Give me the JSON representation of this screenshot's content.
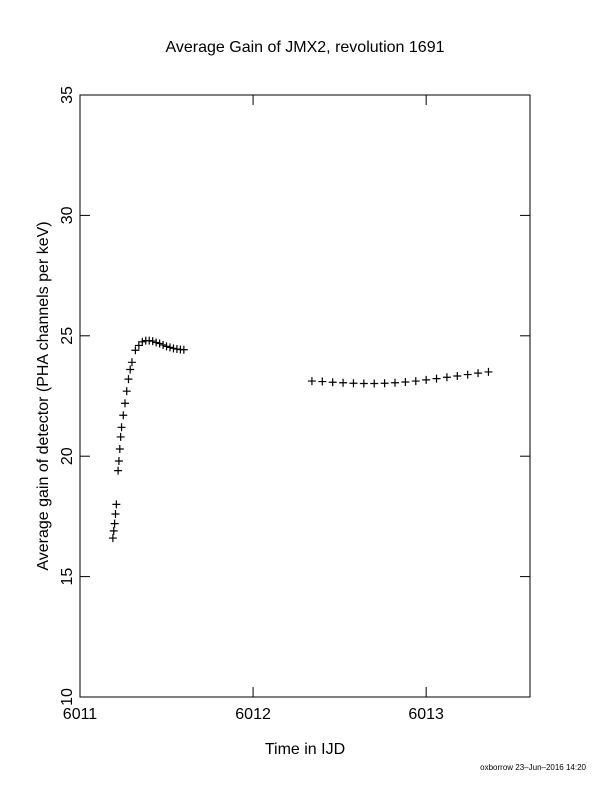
{
  "chart_data": {
    "type": "scatter",
    "title": "Average Gain of JMX2, revolution 1691",
    "x_label": "Time in IJD",
    "y_label": "Average gain of detector (PHA channels per keV)",
    "footer": "oxborrow 23–Jun–2016 14:20",
    "xlim": [
      6011,
      6013.6
    ],
    "xticks": [
      6011,
      6012,
      6013
    ],
    "ylim": [
      10,
      35
    ],
    "yticks": [
      10,
      15,
      20,
      25,
      30,
      35
    ],
    "marker": "+",
    "color": "#000000",
    "x": [
      6011.19,
      6011.195,
      6011.2,
      6011.205,
      6011.21,
      6011.22,
      6011.225,
      6011.23,
      6011.235,
      6011.24,
      6011.25,
      6011.26,
      6011.27,
      6011.28,
      6011.29,
      6011.3,
      6011.32,
      6011.34,
      6011.36,
      6011.38,
      6011.4,
      6011.42,
      6011.44,
      6011.46,
      6011.48,
      6011.5,
      6011.52,
      6011.54,
      6011.56,
      6011.58,
      6011.6,
      6012.34,
      6012.4,
      6012.46,
      6012.52,
      6012.58,
      6012.64,
      6012.7,
      6012.76,
      6012.82,
      6012.88,
      6012.94,
      6013.0,
      6013.06,
      6013.12,
      6013.18,
      6013.24,
      6013.3,
      6013.36
    ],
    "values": [
      16.6,
      16.9,
      17.2,
      17.6,
      18.0,
      19.4,
      19.8,
      20.3,
      20.8,
      21.2,
      21.7,
      22.2,
      22.7,
      23.2,
      23.6,
      23.9,
      24.4,
      24.6,
      24.75,
      24.8,
      24.8,
      24.78,
      24.72,
      24.68,
      24.62,
      24.56,
      24.52,
      24.48,
      24.45,
      24.43,
      24.42,
      23.12,
      23.1,
      23.07,
      23.05,
      23.03,
      23.02,
      23.02,
      23.03,
      23.05,
      23.08,
      23.12,
      23.17,
      23.22,
      23.28,
      23.33,
      23.39,
      23.45,
      23.5
    ]
  }
}
